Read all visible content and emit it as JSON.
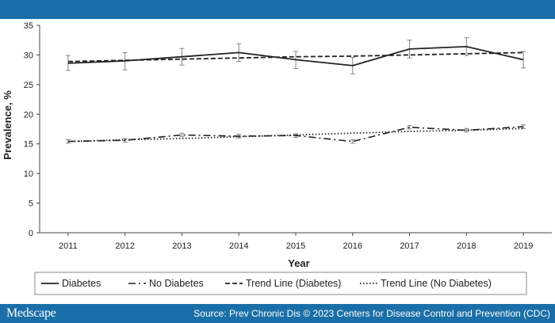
{
  "branding": {
    "logo": "Medscape",
    "source": "Source: Prev Chronic Dis © 2023 Centers for Disease Control and Prevention (CDC)"
  },
  "chart_data": {
    "type": "line",
    "xlabel": "Year",
    "ylabel": "Prevalence, %",
    "categories": [
      "2011",
      "2012",
      "2013",
      "2014",
      "2015",
      "2016",
      "2017",
      "2018",
      "2019"
    ],
    "ylim": [
      0,
      35
    ],
    "yticks": [
      0,
      5,
      10,
      15,
      20,
      25,
      30,
      35
    ],
    "grid": false,
    "legend_position": "bottom",
    "series": [
      {
        "name": "Diabetes",
        "style": "solid",
        "values": [
          28.6,
          29.0,
          29.7,
          30.4,
          29.2,
          28.2,
          31.0,
          31.4,
          29.2
        ],
        "error_low": [
          27.4,
          27.5,
          28.3,
          28.9,
          27.7,
          26.8,
          29.5,
          29.9,
          27.8
        ],
        "error_high": [
          29.9,
          30.4,
          31.1,
          31.9,
          30.6,
          29.6,
          32.5,
          32.9,
          30.6
        ]
      },
      {
        "name": "No Diabetes",
        "style": "dashdot",
        "values": [
          15.4,
          15.6,
          16.5,
          16.3,
          16.4,
          15.4,
          17.8,
          17.3,
          17.9
        ],
        "error_low": [
          15.1,
          15.3,
          16.2,
          16.0,
          16.1,
          15.1,
          17.5,
          17.0,
          17.6
        ],
        "error_high": [
          15.7,
          15.9,
          16.8,
          16.6,
          16.7,
          15.7,
          18.1,
          17.6,
          18.2
        ]
      },
      {
        "name": "Trend Line (Diabetes)",
        "style": "dashed",
        "values": [
          28.9,
          29.1,
          29.3,
          29.5,
          29.7,
          29.8,
          30.0,
          30.2,
          30.4
        ]
      },
      {
        "name": "Trend Line (No Diabetes)",
        "style": "dotted",
        "values": [
          15.4,
          15.7,
          15.9,
          16.2,
          16.5,
          16.8,
          17.1,
          17.3,
          17.6
        ]
      }
    ]
  }
}
